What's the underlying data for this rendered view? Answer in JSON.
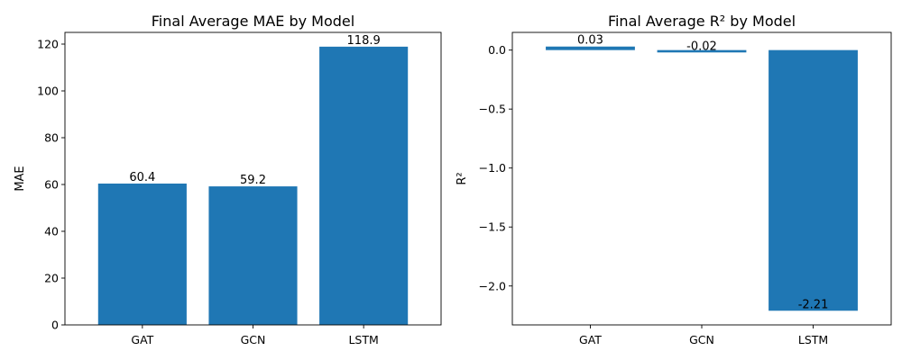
{
  "chart_data": [
    {
      "type": "bar",
      "title": "Final Average MAE by Model",
      "xlabel": "",
      "ylabel": "MAE",
      "categories": [
        "GAT",
        "GCN",
        "LSTM"
      ],
      "values": [
        60.4,
        59.2,
        118.9
      ],
      "value_labels": [
        "60.4",
        "59.2",
        "118.9"
      ],
      "ylim": [
        0,
        125
      ],
      "yticks": [
        0,
        20,
        40,
        60,
        80,
        100,
        120
      ],
      "ytick_labels": [
        "0",
        "20",
        "40",
        "60",
        "80",
        "100",
        "120"
      ],
      "grid": false,
      "bar_color": "#1f77b4"
    },
    {
      "type": "bar",
      "title": "Final Average R² by Model",
      "xlabel": "",
      "ylabel": "R²",
      "categories": [
        "GAT",
        "GCN",
        "LSTM"
      ],
      "values": [
        0.03,
        -0.02,
        -2.21
      ],
      "value_labels": [
        "0.03",
        "-0.02",
        "-2.21"
      ],
      "ylim": [
        -2.33,
        0.15
      ],
      "yticks": [
        0.0,
        -0.5,
        -1.0,
        -1.5,
        -2.0
      ],
      "ytick_labels": [
        "0.0",
        "−0.5",
        "−1.0",
        "−1.5",
        "−2.0"
      ],
      "grid": false,
      "bar_color": "#1f77b4"
    }
  ]
}
